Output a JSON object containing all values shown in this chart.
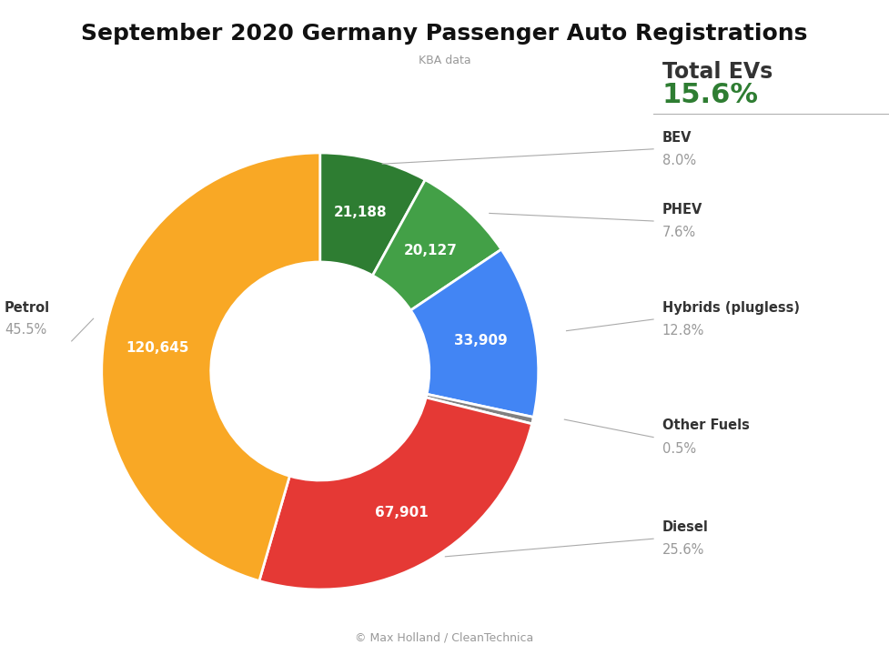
{
  "title": "September 2020 Germany Passenger Auto Registrations",
  "subtitle": "KBA data",
  "footer": "© Max Holland / CleanTechnica",
  "segments": [
    {
      "label": "BEV",
      "pct_label": "8.0%",
      "value": 21188,
      "color": "#2e7d32"
    },
    {
      "label": "PHEV",
      "pct_label": "7.6%",
      "value": 20127,
      "color": "#43a047"
    },
    {
      "label": "Hybrids (plugless)",
      "pct_label": "12.8%",
      "value": 33909,
      "color": "#4285f4"
    },
    {
      "label": "Other Fuels",
      "pct_label": "0.5%",
      "value": 1325,
      "color": "#808080"
    },
    {
      "label": "Diesel",
      "pct_label": "25.6%",
      "value": 67901,
      "color": "#e53935"
    },
    {
      "label": "Petrol",
      "pct_label": "45.5%",
      "value": 120645,
      "color": "#f9a825"
    }
  ],
  "total_ev_label": "Total EVs",
  "total_ev_pct": "15.6%",
  "total_ev_color": "#2e7d32",
  "annotation_line_color": "#aaaaaa",
  "label_color_dark": "#333333",
  "pct_color_light": "#999999",
  "background_color": "#ffffff",
  "wedge_text_color": "#ffffff"
}
